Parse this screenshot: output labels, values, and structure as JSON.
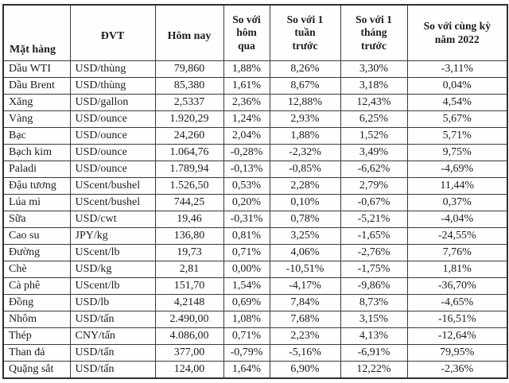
{
  "chart_data": {
    "type": "table",
    "columns": [
      "Mặt hàng",
      "ĐVT",
      "Hôm nay",
      "So với hôm qua",
      "So với 1 tuần trước",
      "So với 1 tháng trước",
      "So với cùng kỳ năm 2022"
    ],
    "rows": [
      [
        "Dầu WTI",
        "USD/thùng",
        "79,860",
        "1,88%",
        "8,26%",
        "3,30%",
        "-3,11%"
      ],
      [
        "Dầu Brent",
        "USD/thùng",
        "85,380",
        "1,61%",
        "8,67%",
        "3,18%",
        "0,04%"
      ],
      [
        "Xăng",
        "USD/gallon",
        "2,5337",
        "2,36%",
        "12,88%",
        "12,43%",
        "4,54%"
      ],
      [
        "Vàng",
        "USD/ounce",
        "1.920,29",
        "1,24%",
        "2,93%",
        "6,25%",
        "5,67%"
      ],
      [
        "Bạc",
        "USD/ounce",
        "24,260",
        "2,04%",
        "1,88%",
        "1,52%",
        "5,71%"
      ],
      [
        "Bạch kim",
        "USD/ounce",
        "1.064,76",
        "-0,28%",
        "-2,32%",
        "3,49%",
        "9,75%"
      ],
      [
        "Paladi",
        "USD/ounce",
        "1.789,94",
        "-0,13%",
        "-0,85%",
        "-6,62%",
        "-4,69%"
      ],
      [
        "Đậu tương",
        "UScent/bushel",
        "1.526,50",
        "0,53%",
        "2,28%",
        "2,79%",
        "11,44%"
      ],
      [
        "Lúa mì",
        "UScent/bushel",
        "744,25",
        "0,20%",
        "0,10%",
        "-0,67%",
        "0,37%"
      ],
      [
        "Sữa",
        "USD/cwt",
        "19,46",
        "-0,31%",
        "0,78%",
        "-5,21%",
        "-4,04%"
      ],
      [
        "Cao su",
        "JPY/kg",
        "136,80",
        "0,81%",
        "3,25%",
        "-1,65%",
        "-24,55%"
      ],
      [
        "Đường",
        "UScent/lb",
        "19,73",
        "0,71%",
        "4,06%",
        "-2,76%",
        "7,76%"
      ],
      [
        "Chè",
        "USD/kg",
        "2,81",
        "0,00%",
        "-10,51%",
        "-1,75%",
        "1,81%"
      ],
      [
        "Cà phê",
        "UScent/lb",
        "151,70",
        "1,54%",
        "-4,17%",
        "-9,86%",
        "-36,70%"
      ],
      [
        "Đồng",
        "USD/lb",
        "4,2148",
        "0,69%",
        "7,84%",
        "8,73%",
        "-4,65%"
      ],
      [
        "Nhôm",
        "USD/tấn",
        "2.490,00",
        "1,08%",
        "7,68%",
        "3,15%",
        "-16,51%"
      ],
      [
        "Thép",
        "CNY/tấn",
        "4.086,00",
        "0,71%",
        "2,23%",
        "4,13%",
        "-12,64%"
      ],
      [
        "Than đá",
        "USD/tấn",
        "377,00",
        "-0,79%",
        "-5,16%",
        "-6,91%",
        "79,95%"
      ],
      [
        "Quặng sắt",
        "USD/tấn",
        "124,00",
        "1,64%",
        "6,90%",
        "12,22%",
        "-2,36%"
      ]
    ]
  },
  "header": {
    "column_lines": [
      [
        "Mặt hàng"
      ],
      [
        "ĐVT"
      ],
      [
        "Hôm nay"
      ],
      [
        "So với",
        "hôm",
        "qua"
      ],
      [
        "So với 1",
        "tuần",
        "trước"
      ],
      [
        "So với 1",
        "tháng",
        "trước"
      ],
      [
        "So với cùng kỳ",
        "năm 2022"
      ]
    ],
    "column_names": [
      "commodity",
      "unit",
      "price-today",
      "change-vs-yesterday",
      "change-vs-1-week",
      "change-vs-1-month",
      "change-vs-same-period-2022"
    ]
  },
  "colors": {
    "text": "#1d1d1d",
    "border": "#3a3a3a",
    "background": "#ffffff"
  }
}
